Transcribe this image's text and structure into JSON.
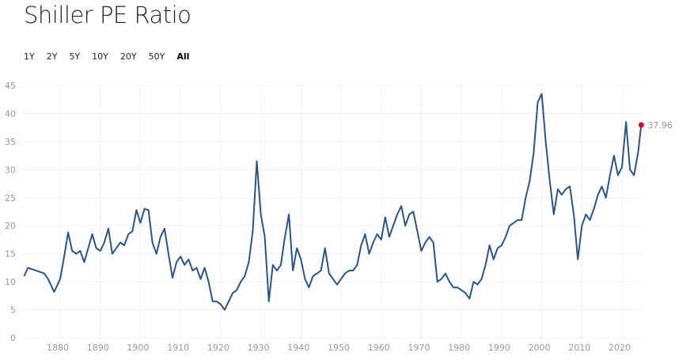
{
  "title": "Shiller PE Ratio",
  "ranges": [
    {
      "label": "1Y"
    },
    {
      "label": "2Y"
    },
    {
      "label": "5Y"
    },
    {
      "label": "10Y"
    },
    {
      "label": "20Y"
    },
    {
      "label": "50Y"
    },
    {
      "label": "All",
      "active": true
    }
  ],
  "colors": {
    "line": "#2b5488",
    "marker": "#e4002b",
    "grid": "#f0f0f0"
  },
  "chart_data": {
    "type": "line",
    "title": "Shiller PE Ratio",
    "xlabel": "",
    "ylabel": "",
    "xlim": [
      1871,
      2024.8
    ],
    "ylim": [
      0,
      45
    ],
    "yticks": [
      0,
      5,
      10,
      15,
      20,
      25,
      30,
      35,
      40,
      45
    ],
    "xticks": [
      1880,
      1890,
      1900,
      1910,
      1920,
      1930,
      1940,
      1950,
      1960,
      1970,
      1980,
      1990,
      2000,
      2010,
      2020
    ],
    "grid": true,
    "last_value_label": "37.96",
    "series": [
      {
        "name": "Shiller PE",
        "x": [
          1871,
          1872,
          1874,
          1876,
          1877,
          1878.5,
          1880,
          1881,
          1882,
          1883,
          1884,
          1885,
          1886,
          1887,
          1888,
          1889,
          1890,
          1891,
          1892,
          1893,
          1894,
          1895,
          1896,
          1897,
          1898,
          1899,
          1900,
          1901,
          1902,
          1903,
          1904,
          1905,
          1906,
          1907,
          1908,
          1909,
          1910,
          1911,
          1912,
          1913,
          1914,
          1915,
          1916,
          1917,
          1918,
          1919,
          1920,
          1921,
          1922,
          1923,
          1924,
          1925,
          1926,
          1927,
          1928,
          1929,
          1930,
          1931,
          1932,
          1933,
          1934,
          1935,
          1936,
          1937,
          1938,
          1939,
          1940,
          1941,
          1942,
          1943,
          1944,
          1945,
          1946,
          1947,
          1948,
          1949,
          1950,
          1951,
          1952,
          1953,
          1954,
          1955,
          1956,
          1957,
          1958,
          1959,
          1960,
          1961,
          1962,
          1963,
          1964,
          1965,
          1966,
          1967,
          1968,
          1969,
          1970,
          1971,
          1972,
          1973,
          1974,
          1975,
          1976,
          1977,
          1978,
          1979,
          1980,
          1981,
          1982,
          1983,
          1984,
          1985,
          1986,
          1987,
          1988,
          1989,
          1990,
          1991,
          1992,
          1993,
          1994,
          1995,
          1996,
          1997,
          1998,
          1999,
          2000,
          2001,
          2002,
          2003,
          2004,
          2005,
          2006,
          2007,
          2008,
          2009,
          2010,
          2011,
          2012,
          2013,
          2014,
          2015,
          2016,
          2017,
          2018,
          2019,
          2020,
          2021,
          2022,
          2023,
          2024,
          2024.8
        ],
        "values": [
          11,
          12.5,
          12,
          11.5,
          10.5,
          8.2,
          10.5,
          14.5,
          18.8,
          15.5,
          15,
          15.5,
          13.5,
          16,
          18.5,
          16,
          15.5,
          17,
          19.5,
          15,
          16,
          17,
          16.5,
          18.5,
          19,
          22.8,
          20.5,
          23,
          22.8,
          17,
          15,
          18,
          19.5,
          15,
          10.7,
          13.5,
          14.5,
          13,
          14,
          12,
          12.5,
          10.5,
          12.5,
          10,
          6.5,
          6.5,
          6,
          5,
          6.5,
          8,
          8.5,
          10,
          11,
          13.5,
          19,
          31.5,
          22,
          18,
          6.5,
          13,
          12,
          13,
          18,
          22,
          12,
          16,
          14,
          10.5,
          9,
          11,
          11.5,
          12,
          16,
          11.5,
          10.5,
          9.5,
          10.5,
          11.5,
          12,
          12,
          13,
          16.5,
          18.5,
          15,
          17,
          18.5,
          17.5,
          21.5,
          18,
          20,
          22,
          23.5,
          20,
          22,
          22.5,
          19,
          15.5,
          17,
          18,
          17,
          10,
          10.5,
          11.5,
          10,
          9,
          9,
          8.5,
          8,
          7,
          10,
          9.5,
          10.5,
          13,
          16.5,
          14,
          16,
          16.5,
          18,
          20,
          20.5,
          21,
          21,
          25,
          28,
          33,
          42,
          43.5,
          35,
          28,
          22,
          26.5,
          25.5,
          26.5,
          27,
          22,
          14,
          20,
          22,
          21,
          23,
          25.5,
          27,
          25,
          29,
          32.5,
          29,
          30.5,
          38.5,
          30,
          29,
          33,
          37.96
        ]
      }
    ]
  }
}
